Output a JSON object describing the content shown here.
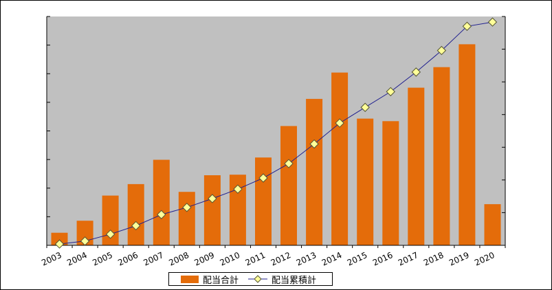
{
  "chart_data": {
    "type": "bar",
    "categories": [
      "2003",
      "2004",
      "2005",
      "2006",
      "2007",
      "2008",
      "2009",
      "2010",
      "2011",
      "2012",
      "2013",
      "2014",
      "2015",
      "2016",
      "2017",
      "2018",
      "2019",
      "2020"
    ],
    "series": [
      {
        "name": "配当合計",
        "type": "bar",
        "color": "#E46C0A",
        "values": [
          4.4,
          8.6,
          17.4,
          21.4,
          29.9,
          18.7,
          24.5,
          24.7,
          30.7,
          41.7,
          51.2,
          60.4,
          44.3,
          43.4,
          55.1,
          62.3,
          70.3,
          14.4
        ]
      },
      {
        "name": "配当累積計",
        "type": "line",
        "line_color": "#1F1F8F",
        "marker": "diamond",
        "marker_color": "#FFFF99",
        "values": [
          0.4,
          1.3,
          3.4,
          6.0,
          9.4,
          11.6,
          14.3,
          17.2,
          20.6,
          25.0,
          31.0,
          37.4,
          42.2,
          47.0,
          53.0,
          59.6,
          67.0,
          68.3
        ],
        "y_axis": "secondary"
      }
    ],
    "ylim": [
      0,
      80
    ],
    "y2lim": [
      0,
      70
    ],
    "grid": false,
    "plot_background": "#C0C0C0",
    "legend_position": "bottom"
  },
  "legend": {
    "items": [
      {
        "label": "配当合計"
      },
      {
        "label": "配当累積計"
      }
    ]
  }
}
